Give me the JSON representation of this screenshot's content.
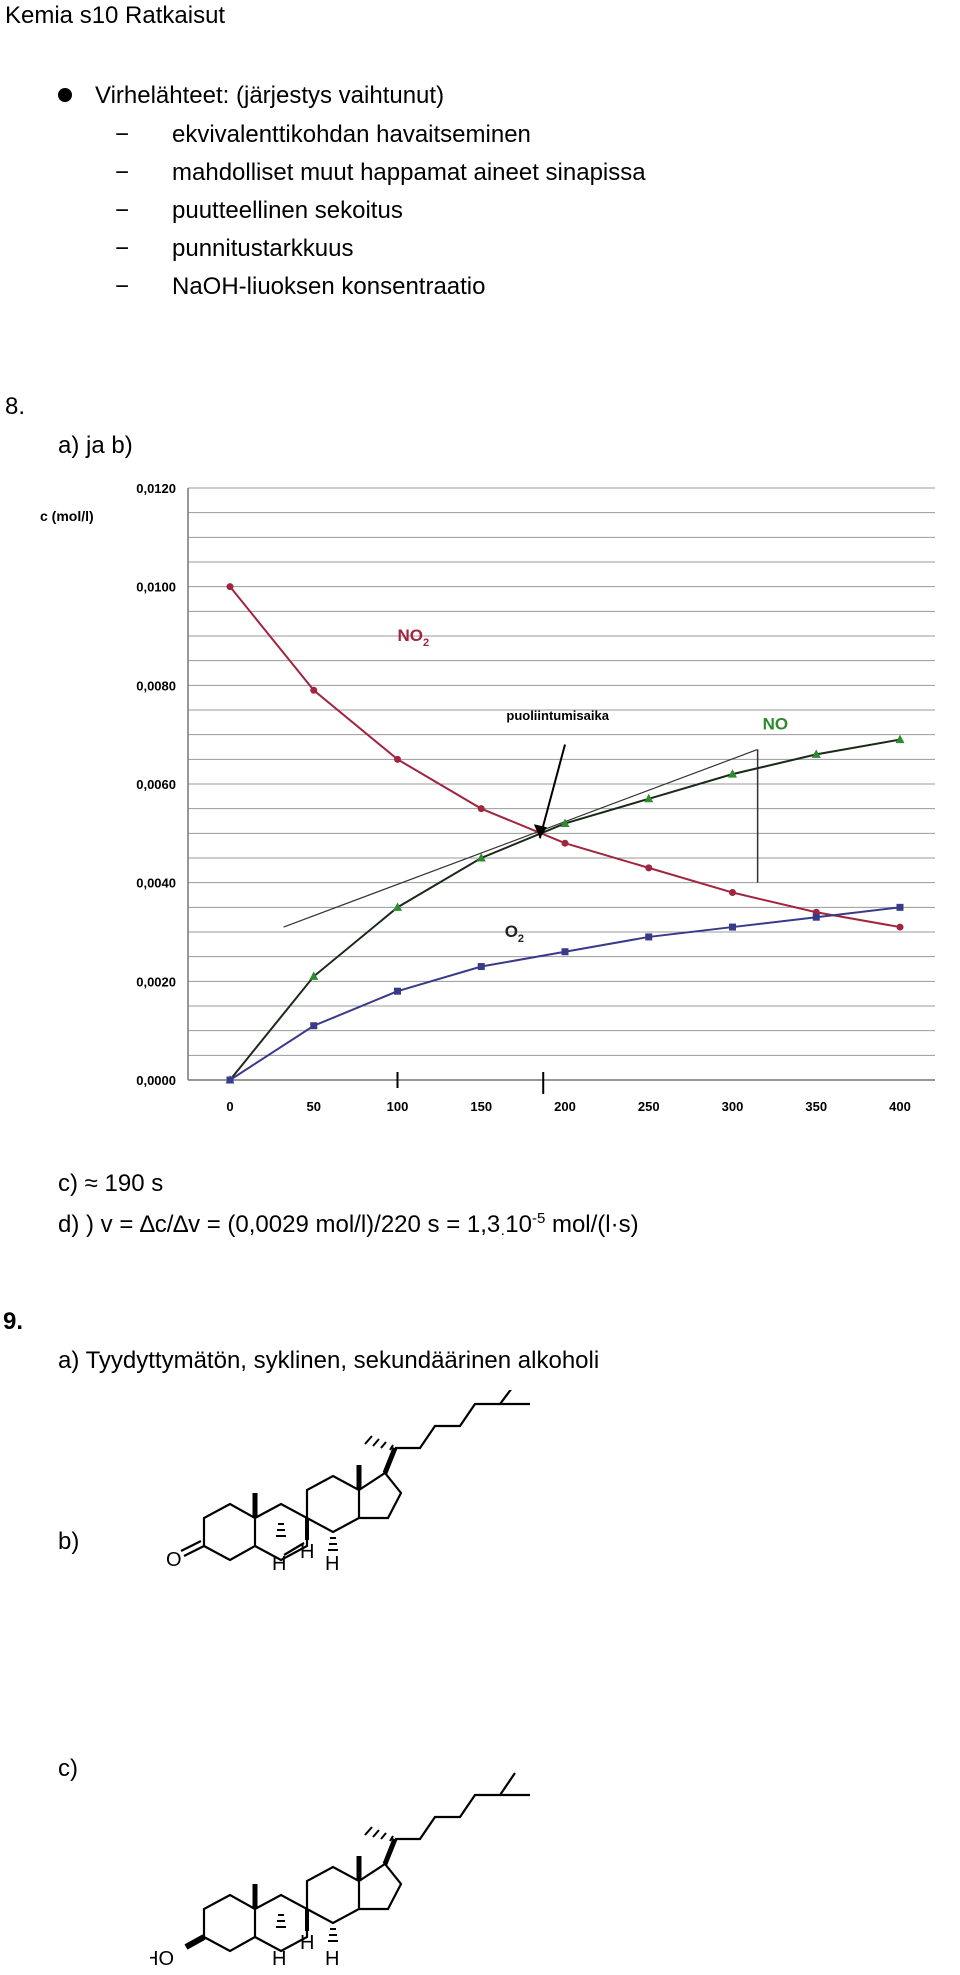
{
  "header": "Kemia  s10 Ratkaisut",
  "errors": {
    "title": "Virhelähteet: (järjestys vaihtunut)",
    "items": [
      "ekvivalenttikohdan havaitseminen",
      "mahdolliset muut happamat aineet sinapissa",
      "puutteellinen sekoitus",
      "punnitustarkkuus",
      "NaOH-liuoksen konsentraatio"
    ],
    "dash": "−"
  },
  "q8": {
    "num": "8.",
    "ab": "a) ja b)",
    "c_answer": "c) ≈ 190 s",
    "d_answer": {
      "pre": "d) ) v = ",
      "formula": "∆c/∆v = (0,0029 mol/l)/220 s = 1,3",
      "dot": "·",
      "base": "10",
      "exp": "-5",
      "unit_pre": " mol/(l",
      "unit_dot": "·",
      "unit_post": "s)"
    }
  },
  "q9": {
    "num": "9.",
    "a": "a)  Tyydyttymätön, syklinen, sekundäärinen alkoholi",
    "b": "b)",
    "c": "c)",
    "mol_b": {
      "O": "O",
      "H1": "H",
      "H2": "H",
      "H3": "H"
    },
    "mol_c": {
      "HO": "HO",
      "H1": "H",
      "H2": "H",
      "H3": "H"
    }
  },
  "chart_data": {
    "type": "line",
    "ylabel": "c (mol/l)",
    "x": [
      0,
      50,
      100,
      150,
      200,
      250,
      300,
      350,
      400
    ],
    "x_ticks": [
      "0",
      "50",
      "100",
      "150",
      "200",
      "250",
      "300",
      "350",
      "400"
    ],
    "y_ticks": [
      "0,0000",
      "0,0020",
      "0,0040",
      "0,0060",
      "0,0080",
      "0,0100",
      "0,0120"
    ],
    "ylim": [
      0,
      0.012
    ],
    "xlim": [
      0,
      400
    ],
    "grid": true,
    "series": [
      {
        "name": "NO2",
        "label_main": "NO",
        "label_sub": "2",
        "color": "#a0253e",
        "values": [
          0.01,
          0.0079,
          0.0065,
          0.0055,
          0.0048,
          0.0043,
          0.0038,
          0.0034,
          0.0031
        ]
      },
      {
        "name": "NO",
        "label_main": "NO",
        "label_sub": "",
        "color": "#2e8b2e",
        "values": [
          0.0,
          0.0021,
          0.0035,
          0.0045,
          0.0052,
          0.0057,
          0.0062,
          0.0066,
          0.0069
        ]
      },
      {
        "name": "O2",
        "label_main": "O",
        "label_sub": "2",
        "color": "#3a3a8a",
        "values": [
          0.0,
          0.0011,
          0.0018,
          0.0023,
          0.0026,
          0.0029,
          0.0031,
          0.0033,
          0.0035
        ]
      }
    ],
    "annotations": [
      {
        "text": "puoliintumisaika",
        "target_x": 185,
        "target_y": 0.0049
      }
    ]
  }
}
